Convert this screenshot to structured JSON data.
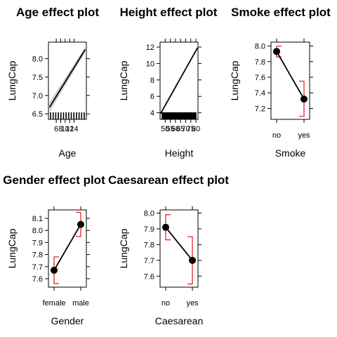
{
  "chart_data": [
    {
      "type": "line",
      "title": "Age effect plot",
      "xlabel": "Age",
      "ylabel": "LungCap",
      "x_ticks": [
        6,
        8,
        10,
        12,
        14
      ],
      "x_tick_labels": [
        "6",
        "8",
        "10",
        "12",
        "14"
      ],
      "y_ticks": [
        6.5,
        7.0,
        7.5,
        8.0
      ],
      "y_tick_labels": [
        "6.5",
        "7.0",
        "7.5",
        "8.0"
      ],
      "xlim": [
        2.5,
        19.5
      ],
      "ylim": [
        6.35,
        8.45
      ],
      "series": [
        {
          "x": [
            3,
            19
          ],
          "y": [
            6.68,
            8.25
          ],
          "lower": [
            6.55,
            8.18
          ],
          "upper": [
            6.82,
            8.32
          ]
        }
      ],
      "rug": true
    },
    {
      "type": "line",
      "title": "Height effect plot",
      "xlabel": "Height",
      "ylabel": "LungCap",
      "x_ticks": [
        50,
        55,
        60,
        65,
        70,
        75,
        80
      ],
      "x_tick_labels": [
        "50",
        "55",
        "60",
        "65",
        "70",
        "75",
        "80"
      ],
      "y_ticks": [
        4,
        6,
        8,
        10,
        12
      ],
      "y_tick_labels": [
        "4",
        "6",
        "8",
        "10",
        "12"
      ],
      "xlim": [
        45,
        82
      ],
      "ylim": [
        3.2,
        12.6
      ],
      "series": [
        {
          "x": [
            45.5,
            81.5
          ],
          "y": [
            3.9,
            11.9
          ],
          "lower": [
            3.8,
            11.8
          ],
          "upper": [
            4.0,
            12.0
          ]
        }
      ],
      "rug": true
    },
    {
      "type": "line",
      "title": "Smoke effect plot",
      "xlabel": "Smoke",
      "ylabel": "LungCap",
      "categories": [
        "no",
        "yes"
      ],
      "y_ticks": [
        7.2,
        7.4,
        7.6,
        7.8,
        8.0
      ],
      "y_tick_labels": [
        "7.2",
        "7.4",
        "7.6",
        "7.8",
        "8.0"
      ],
      "ylim": [
        7.06,
        8.05
      ],
      "series": [
        {
          "values": [
            7.93,
            7.32
          ],
          "lower": [
            7.86,
            7.1
          ],
          "upper": [
            8.0,
            7.55
          ]
        }
      ]
    },
    {
      "type": "line",
      "title": "Gender effect plot",
      "xlabel": "Gender",
      "ylabel": "LungCap",
      "categories": [
        "female",
        "male"
      ],
      "y_ticks": [
        7.6,
        7.7,
        7.8,
        7.9,
        8.0,
        8.1
      ],
      "y_tick_labels": [
        "7.6",
        "7.7",
        "7.8",
        "7.9",
        "8.0",
        "8.1"
      ],
      "ylim": [
        7.53,
        8.17
      ],
      "series": [
        {
          "values": [
            7.67,
            8.05
          ],
          "lower": [
            7.56,
            7.95
          ],
          "upper": [
            7.78,
            8.15
          ]
        }
      ]
    },
    {
      "type": "line",
      "title": "Caesarean effect plot",
      "xlabel": "Caesarean",
      "ylabel": "LungCap",
      "categories": [
        "no",
        "yes"
      ],
      "y_ticks": [
        7.6,
        7.7,
        7.8,
        7.9,
        8.0
      ],
      "y_tick_labels": [
        "7.6",
        "7.7",
        "7.8",
        "7.9",
        "8.0"
      ],
      "ylim": [
        7.53,
        8.02
      ],
      "series": [
        {
          "values": [
            7.91,
            7.7
          ],
          "lower": [
            7.83,
            7.55
          ],
          "upper": [
            7.99,
            7.85
          ]
        }
      ]
    }
  ]
}
